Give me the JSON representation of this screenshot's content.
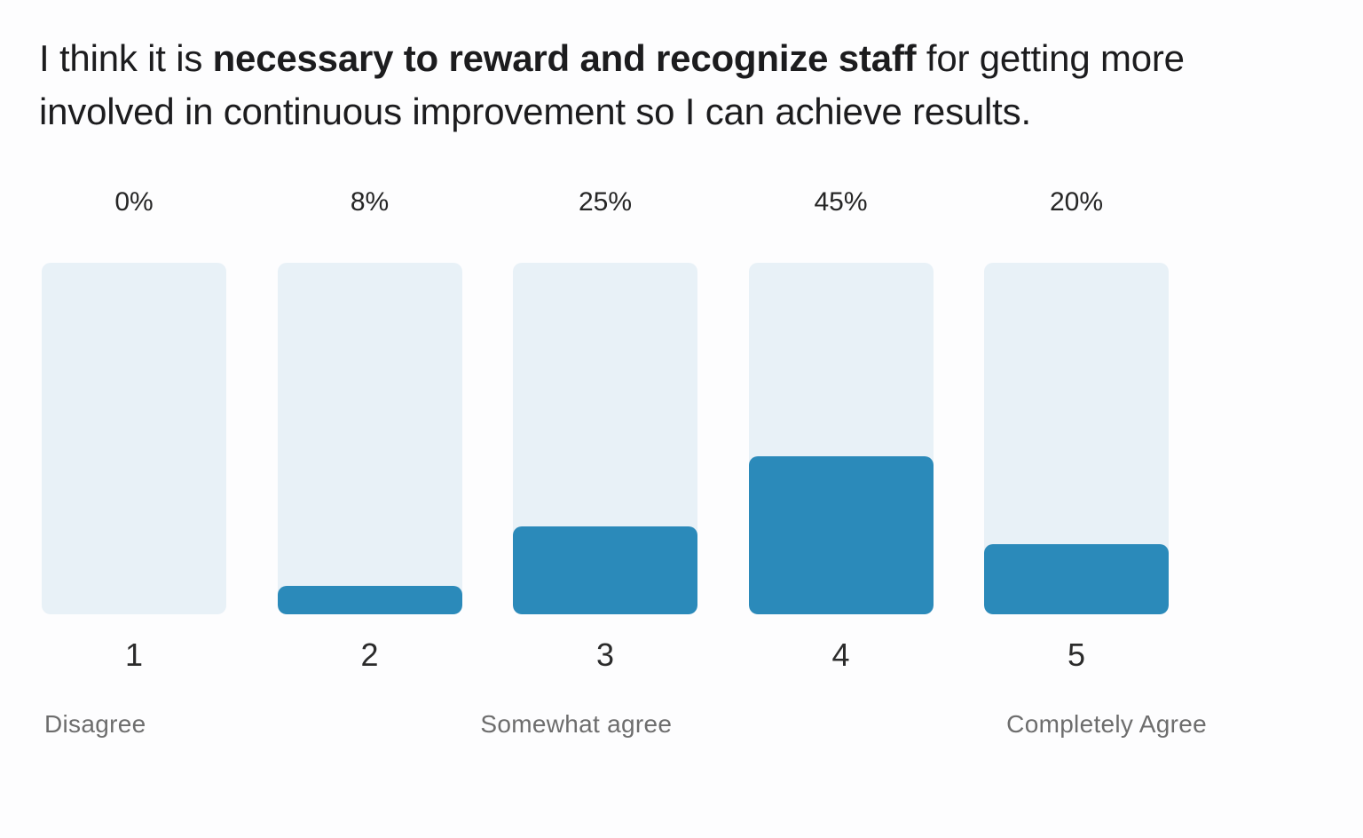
{
  "title": {
    "prefix": "I think it is ",
    "bold": "necessary to reward and recognize staff",
    "suffix_line1": " for getting more",
    "line2": "involved in continuous improvement so I can achieve results."
  },
  "chart_data": {
    "type": "bar",
    "categories": [
      "1",
      "2",
      "3",
      "4",
      "5"
    ],
    "values": [
      0,
      8,
      25,
      45,
      20
    ],
    "value_labels": [
      "0%",
      "8%",
      "25%",
      "45%",
      "20%"
    ],
    "scale_labels": [
      "Disagree",
      "Somewhat agree",
      "Completely Agree"
    ],
    "ylim": [
      0,
      100
    ],
    "grid": false,
    "legend": "none",
    "orientation": "vertical",
    "colors": {
      "fill": "#2b8aba",
      "track": "#e8f1f7"
    }
  }
}
